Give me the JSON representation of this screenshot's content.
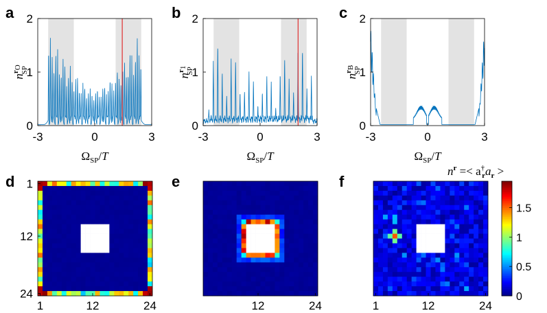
{
  "chart_data": [
    {
      "id": "a",
      "type": "line",
      "letter": "a",
      "xlabel": "ΩSP/T",
      "xlim": [
        -3,
        3
      ],
      "xticks": [
        "-3",
        "0",
        "3"
      ],
      "ylim": [
        0,
        2
      ],
      "yticks": [
        "0",
        "1",
        "2"
      ],
      "ylabel_sup": "r",
      "ylabel_sub_r": "O",
      "shaded": [
        [
          -2.45,
          -1.1
        ],
        [
          1.1,
          2.45
        ]
      ],
      "marker_x": 1.45,
      "line_color": "#0072bd",
      "marker_color": "#e03030",
      "envelope": {
        "kind": "dome",
        "center": 0,
        "halfwidth": 2.45,
        "peak": 1.65,
        "lines": 52,
        "base": 0.1
      }
    },
    {
      "id": "b",
      "type": "line",
      "letter": "b",
      "xlabel": "ΩSP/T",
      "xlim": [
        -3,
        3
      ],
      "xticks": [
        "-3",
        "0",
        "3"
      ],
      "ylim": [
        0,
        2
      ],
      "yticks": [
        "0",
        "1",
        "2"
      ],
      "ylabel_sup": "r",
      "ylabel_sub_r": "1",
      "shaded": [
        [
          -2.45,
          -1.1
        ],
        [
          1.1,
          2.45
        ]
      ],
      "marker_x": 2.0,
      "line_color": "#0072bd",
      "marker_color": "#e03030",
      "envelope": {
        "kind": "sparse",
        "lines": 24,
        "base": 0.12
      }
    },
    {
      "id": "c",
      "type": "line",
      "letter": "c",
      "xlabel": "ΩSP/T",
      "xlim": [
        -3,
        3
      ],
      "xticks": [
        "-3",
        "0",
        "3"
      ],
      "ylim": [
        0,
        2
      ],
      "yticks": [
        "0",
        "1",
        "2"
      ],
      "ylabel_sup": "r",
      "ylabel_sub_r": "B",
      "shaded": [
        [
          -2.45,
          -1.1
        ],
        [
          1.1,
          2.45
        ]
      ],
      "line_color": "#0072bd",
      "envelope": {
        "kind": "edges",
        "base": 0.02
      }
    },
    {
      "id": "d",
      "type": "heatmap",
      "letter": "d",
      "grid": 24,
      "hole": [
        9,
        15
      ],
      "xticks": [
        "1",
        "12",
        "24"
      ],
      "yticks": [
        "1",
        "12",
        "24"
      ],
      "pattern": "outer-edge"
    },
    {
      "id": "e",
      "type": "heatmap",
      "letter": "e",
      "grid": 24,
      "hole": [
        9,
        15
      ],
      "xticks": [
        "12",
        "24"
      ],
      "yticks": [],
      "pattern": "inner-edge"
    },
    {
      "id": "f",
      "type": "heatmap",
      "letter": "f",
      "grid": 24,
      "hole": [
        9,
        15
      ],
      "xticks": [
        "1",
        "12",
        "24"
      ],
      "yticks": [],
      "pattern": "bulk"
    }
  ],
  "colorbar": {
    "label": "n^r =< a†r ar >",
    "ticks": [
      "0",
      "0.5",
      "1",
      "1.5"
    ],
    "range": [
      0,
      1.95
    ],
    "colormap": "jet"
  },
  "labels": {
    "ylabel_main": "n",
    "ylabel_sub": "SP",
    "xlabel_omega": "Ω",
    "xlabel_sub": "SP",
    "xlabel_div": "/",
    "xlabel_T": "T",
    "cb_n": "n",
    "cb_r": "r",
    "cb_eq": " =< a",
    "cb_dag": "†",
    "cb_sub_r": "r",
    "cb_a2": "a",
    "cb_tail": " >"
  }
}
